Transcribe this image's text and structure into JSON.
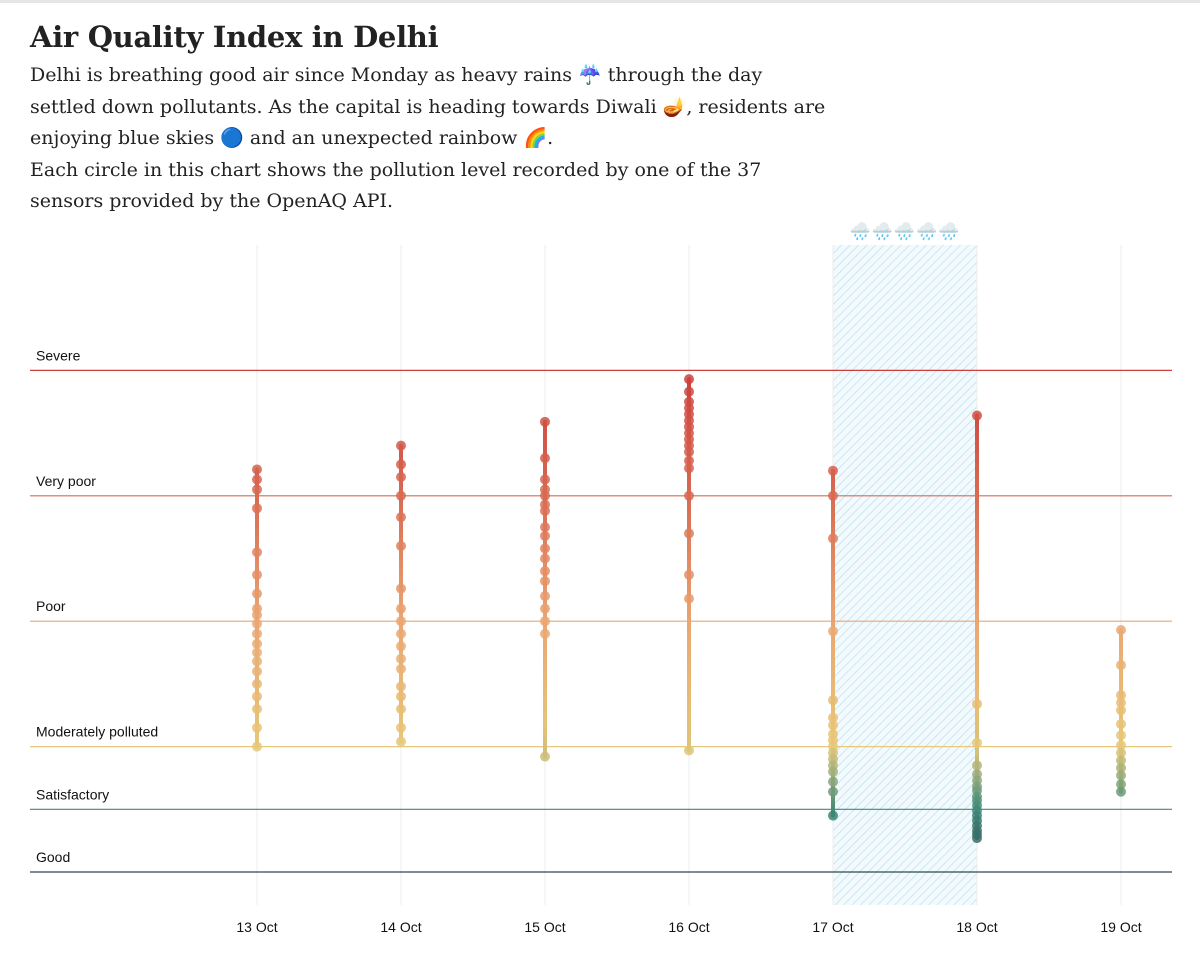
{
  "chart_data": {
    "type": "strip",
    "title": "Air Quality Index in Delhi",
    "subtitle": [
      "Delhi is breathing good air since Monday as heavy rains ☔ through the day settled down pollutants. As the capital is heading towards Diwali 🪔, residents are enjoying blue skies 🔵 and an unexpected rainbow 🌈.",
      "Each circle in this chart shows the pollution level recorded by one of the 37 sensors provided by the OpenAQ API."
    ],
    "categories": [
      "13 Oct",
      "14 Oct",
      "15 Oct",
      "16 Oct",
      "17 Oct",
      "18 Oct",
      "19 Oct"
    ],
    "values": [
      [
        321,
        313,
        305,
        290,
        255,
        237,
        222,
        210,
        205,
        198,
        190,
        182,
        175,
        168,
        160,
        150,
        140,
        130,
        115,
        100
      ],
      [
        340,
        325,
        315,
        300,
        283,
        260,
        226,
        210,
        200,
        190,
        180,
        170,
        162,
        148,
        140,
        130,
        115,
        104
      ],
      [
        359,
        330,
        313,
        305,
        300,
        293,
        288,
        275,
        268,
        258,
        250,
        240,
        232,
        220,
        210,
        200,
        190,
        92
      ],
      [
        393,
        383,
        375,
        370,
        365,
        360,
        355,
        350,
        345,
        340,
        335,
        328,
        322,
        300,
        270,
        237,
        218,
        97
      ],
      [
        320,
        300,
        266,
        192,
        137,
        123,
        117,
        110,
        105,
        100,
        95,
        90,
        85,
        80,
        72,
        64,
        45
      ],
      [
        364,
        134,
        103,
        85,
        78,
        73,
        68,
        65,
        60,
        57,
        53,
        49,
        45,
        41,
        37,
        33,
        30,
        27
      ],
      [
        193,
        165,
        141,
        135,
        129,
        118,
        109,
        101,
        95,
        89,
        83,
        77,
        70,
        64
      ]
    ],
    "ylim": [
      0,
      500
    ],
    "yticks": [
      {
        "value": 0,
        "label": "Good"
      },
      {
        "value": 50,
        "label": "Satisfactory"
      },
      {
        "value": 100,
        "label": "Moderately polluted"
      },
      {
        "value": 200,
        "label": "Poor"
      },
      {
        "value": 300,
        "label": "Very poor"
      },
      {
        "value": 400,
        "label": "Severe"
      }
    ],
    "band_colors": [
      "#2f4a52",
      "#3f8a7a",
      "#e6c878",
      "#eaa672",
      "#d86a52",
      "#cc3f3c"
    ],
    "shaded": {
      "from": "17 Oct",
      "to": "18 Oct",
      "label": "🌧️🌧️🌧️🌧️🌧️"
    },
    "grid": true
  }
}
